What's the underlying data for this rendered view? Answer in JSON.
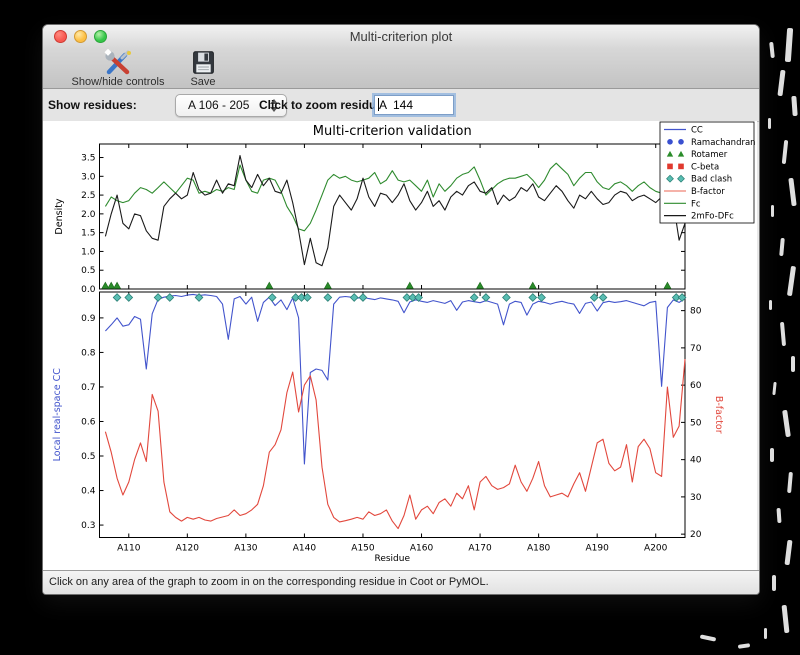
{
  "window": {
    "title": "Multi-criterion plot",
    "toolbar": {
      "show_hide_label": "Show/hide controls",
      "save_label": "Save"
    },
    "controls": {
      "show_residues_label": "Show residues:",
      "residue_range_value": "A 106 - 205",
      "zoom_residue_label": "Click to zoom residue:",
      "zoom_residue_value": "A  144"
    },
    "status_bar": "Click on any area of the graph to zoom in on the corresponding residue in Coot or PyMOL."
  },
  "chart_data": {
    "type": "line",
    "title": "Multi-criterion validation",
    "xlabel": "Residue",
    "xlim": [
      105,
      205
    ],
    "x_start": 106,
    "x_ticks": {
      "values": [
        110,
        120,
        130,
        140,
        150,
        160,
        170,
        180,
        190,
        200
      ],
      "labels": [
        "A110",
        "A120",
        "A130",
        "A140",
        "A150",
        "A160",
        "A170",
        "A180",
        "A190",
        "A200"
      ]
    },
    "top_panel": {
      "ylabel": "Density",
      "ylim": [
        0,
        3.86
      ],
      "yticks": [
        0,
        0.5,
        1,
        1.5,
        2,
        2.5,
        3,
        3.5
      ],
      "ytick_labels": [
        "0.0",
        "0.5",
        "1.0",
        "1.5",
        "2.0",
        "2.5",
        "3.0",
        "3.5"
      ],
      "series": [
        {
          "name": "Fc",
          "color_key": "fc",
          "values": [
            2.2,
            2.45,
            2.35,
            2.3,
            2.35,
            2.55,
            2.7,
            2.65,
            2.55,
            2.7,
            2.85,
            2.7,
            2.55,
            2.75,
            2.95,
            2.9,
            2.55,
            2.6,
            2.55,
            2.65,
            2.6,
            2.7,
            2.65,
            3.3,
            2.9,
            2.6,
            2.55,
            2.9,
            2.95,
            2.9,
            2.6,
            2.2,
            1.95,
            1.6,
            1.55,
            1.75,
            2.1,
            2.5,
            2.9,
            3.05,
            2.95,
            3.0,
            2.9,
            2.85,
            2.9,
            2.95,
            3.1,
            2.8,
            2.9,
            3.15,
            2.9,
            2.85,
            2.9,
            2.75,
            2.6,
            2.9,
            2.45,
            2.8,
            2.6,
            2.75,
            2.95,
            3.05,
            3.1,
            3.25,
            2.9,
            2.5,
            2.65,
            2.8,
            2.9,
            2.95,
            2.95,
            3.0,
            3.05,
            2.9,
            2.7,
            2.9,
            3.2,
            3.35,
            3.2,
            3.05,
            2.75,
            2.95,
            3.1,
            3.1,
            2.85,
            2.7,
            2.65,
            2.8,
            2.85,
            2.75,
            2.6,
            2.75,
            2.85,
            2.7,
            2.6,
            2.55,
            2.9,
            3.05,
            3.15,
            2.95
          ]
        },
        {
          "name": "2mFo-DFc",
          "color_key": "two_mfo_dfc",
          "values": [
            1.4,
            2.0,
            2.5,
            1.75,
            1.6,
            2.0,
            1.95,
            1.55,
            1.35,
            1.3,
            2.2,
            2.4,
            2.55,
            2.4,
            2.5,
            3.1,
            2.65,
            2.5,
            2.55,
            2.9,
            2.55,
            2.8,
            2.75,
            3.55,
            2.9,
            2.7,
            3.05,
            2.75,
            2.95,
            2.6,
            2.55,
            2.9,
            2.3,
            1.55,
            0.65,
            1.35,
            0.7,
            0.62,
            1.1,
            2.2,
            2.5,
            2.3,
            2.1,
            2.4,
            2.95,
            2.45,
            2.2,
            2.55,
            2.5,
            2.3,
            2.5,
            2.8,
            2.35,
            2.1,
            2.3,
            2.6,
            2.2,
            2.35,
            2.1,
            2.45,
            2.6,
            2.5,
            2.75,
            2.85,
            2.6,
            2.55,
            2.7,
            2.25,
            2.5,
            2.35,
            2.45,
            2.7,
            2.6,
            2.8,
            2.45,
            2.35,
            2.55,
            2.75,
            2.6,
            2.35,
            2.15,
            2.5,
            2.4,
            2.6,
            2.4,
            2.25,
            2.3,
            2.5,
            2.6,
            2.55,
            2.35,
            2.45,
            2.5,
            2.4,
            2.3,
            2.45,
            1.9,
            2.3,
            1.3,
            1.75
          ]
        }
      ],
      "rotamer_marker_residues": [
        106,
        107,
        108,
        134,
        144,
        158,
        170,
        179,
        202
      ]
    },
    "bottom_panel": {
      "ylabel_left": "Local real-space CC",
      "ylim_left": [
        0.264,
        0.975
      ],
      "yticks_left": [
        0.3,
        0.4,
        0.5,
        0.6,
        0.7,
        0.8,
        0.9
      ],
      "ytick_labels_left": [
        "0.3",
        "0.4",
        "0.5",
        "0.6",
        "0.7",
        "0.8",
        "0.9"
      ],
      "ylabel_right": "B-factor",
      "ylim_right": [
        19.1,
        85.0
      ],
      "yticks_right": [
        20,
        30,
        40,
        50,
        60,
        70,
        80
      ],
      "ytick_labels_right": [
        "20",
        "30",
        "40",
        "50",
        "60",
        "70",
        "80"
      ],
      "series_left": {
        "name": "CC",
        "color_key": "cc",
        "values": [
          0.862,
          0.88,
          0.9,
          0.876,
          0.88,
          0.904,
          0.896,
          0.752,
          0.912,
          0.954,
          0.96,
          0.963,
          0.965,
          0.962,
          0.966,
          0.968,
          0.965,
          0.967,
          0.965,
          0.962,
          0.94,
          0.838,
          0.955,
          0.962,
          0.94,
          0.96,
          0.89,
          0.945,
          0.96,
          0.936,
          0.952,
          0.924,
          0.958,
          0.9,
          0.477,
          0.742,
          0.752,
          0.748,
          0.72,
          0.94,
          0.96,
          0.962,
          0.96,
          0.957,
          0.96,
          0.956,
          0.953,
          0.958,
          0.955,
          0.952,
          0.948,
          0.915,
          0.946,
          0.952,
          0.948,
          0.945,
          0.95,
          0.946,
          0.942,
          0.95,
          0.922,
          0.946,
          0.95,
          0.947,
          0.944,
          0.95,
          0.945,
          0.94,
          0.88,
          0.94,
          0.948,
          0.945,
          0.908,
          0.94,
          0.948,
          0.945,
          0.94,
          0.945,
          0.948,
          0.943,
          0.94,
          0.913,
          0.942,
          0.946,
          0.92,
          0.944,
          0.948,
          0.945,
          0.947,
          0.95,
          0.945,
          0.94,
          0.935,
          0.945,
          0.948,
          0.702,
          0.93,
          0.952,
          0.945,
          0.956
        ]
      },
      "series_right": {
        "name": "B-factor",
        "color_key": "b_factor",
        "values": [
          47.5,
          42,
          35,
          30.5,
          34,
          40,
          44.5,
          39.5,
          57.5,
          53,
          34,
          26,
          24.5,
          23.5,
          24.5,
          24,
          24.5,
          23.8,
          23.5,
          24.2,
          24.6,
          25,
          26.5,
          25,
          25.5,
          26.5,
          28,
          33,
          42,
          44,
          48,
          58,
          63.5,
          52.8,
          60,
          62.5,
          56,
          38,
          28,
          24.5,
          23.3,
          23.6,
          24,
          24.5,
          24,
          26,
          25,
          25.5,
          26.5,
          23.5,
          21.5,
          25,
          30.5,
          24,
          26.5,
          27.5,
          25.5,
          28.5,
          29.5,
          27.5,
          31,
          29.5,
          33,
          26.5,
          34,
          35.5,
          33,
          32,
          32.5,
          33.5,
          38.5,
          34,
          31.5,
          35,
          39.5,
          33,
          30,
          30.5,
          31,
          30,
          33.5,
          36.5,
          31.5,
          38,
          44.5,
          45.5,
          39,
          37,
          38,
          44,
          34,
          43.5,
          45.5,
          43,
          36.5,
          35.5,
          59.5,
          46,
          49,
          67
        ]
      },
      "bad_clash_marker_residues": [
        108,
        110,
        115,
        117,
        122,
        134.5,
        138.5,
        139.5,
        140.5,
        144,
        148.5,
        150,
        157.5,
        158.5,
        159.5,
        169,
        171,
        174.5,
        179,
        180.5,
        189.5,
        191,
        203.5,
        204.5
      ],
      "ramachandran_marker_residues": [],
      "c_beta_marker_residues": []
    },
    "legend": {
      "position": "upper right",
      "entries": [
        {
          "label": "CC",
          "sample": "line",
          "color_key": "cc"
        },
        {
          "label": "Ramachandran",
          "sample": "circle",
          "color_key": "ramachandran"
        },
        {
          "label": "Rotamer",
          "sample": "triangle",
          "color_key": "rotamer"
        },
        {
          "label": "C-beta",
          "sample": "square",
          "color_key": "c_beta"
        },
        {
          "label": "Bad clash",
          "sample": "diamond",
          "color_key": "bad_clash"
        },
        {
          "label": "B-factor",
          "sample": "line",
          "color_key": "b_factor_legend"
        },
        {
          "label": "Fc",
          "sample": "line",
          "color_key": "fc"
        },
        {
          "label": "2mFo-DFc",
          "sample": "line",
          "color_key": "two_mfo_dfc"
        }
      ]
    },
    "colors": {
      "cc": "#4254cc",
      "b_factor": "#e2483d",
      "b_factor_legend": "#ef8376",
      "fc": "#2f8b2f",
      "two_mfo_dfc": "#1a1a1a",
      "bad_clash": "#58bdb2",
      "bad_clash_edge": "#2a7f74",
      "rotamer": "#2a8c2a",
      "rotamer_edge": "#1d661d",
      "ramachandran": "#3a50d0",
      "c_beta": "#e0392e"
    },
    "grid": false
  }
}
